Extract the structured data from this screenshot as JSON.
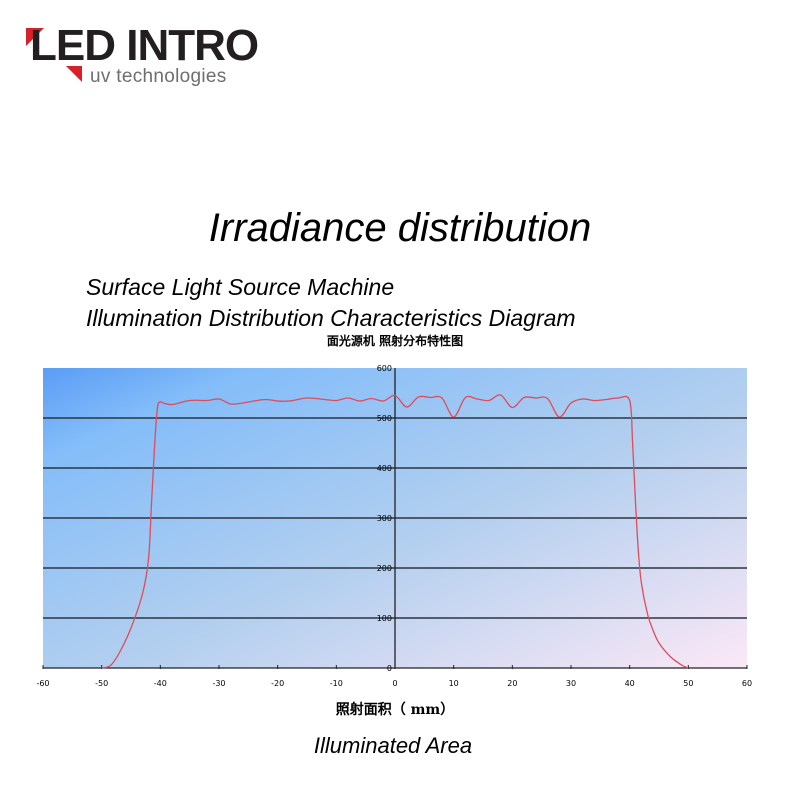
{
  "logo": {
    "brand": "LED INTRO",
    "tagline": "uv technologies",
    "accent_color": "#d7202a",
    "text_color": "#231f20",
    "tagline_color": "#6d6e70"
  },
  "titles": {
    "main": "Irradiance distribution",
    "subtitle_line1": "Surface Light Source Machine",
    "subtitle_line2": "Illumination Distribution Characteristics Diagram",
    "chart_title_cn": "面光源机 照射分布特性图",
    "xlabel_cn": "照射面积（ mm）",
    "xlabel_en": "Illuminated Area"
  },
  "chart_data": {
    "type": "line",
    "title": "面光源机 照射分布特性图",
    "xlabel": "照射面积（ mm）",
    "ylabel": "",
    "xlim": [
      -60,
      60
    ],
    "ylim": [
      0,
      600
    ],
    "x_ticks": [
      -60,
      -50,
      -40,
      -30,
      -20,
      -10,
      0,
      10,
      20,
      30,
      40,
      50,
      60
    ],
    "y_ticks": [
      0,
      100,
      200,
      300,
      400,
      500,
      600
    ],
    "grid": "horizontal",
    "legend": "none",
    "background": "gradient blue (#5b9cf6 top-left) to pink (#fbe8f6 bottom-right)",
    "line_color": "#e04b5a",
    "series": [
      {
        "name": "Irradiance",
        "x": [
          -50,
          -48.5,
          -47,
          -45,
          -43,
          -42,
          -41.5,
          -41,
          -40.5,
          -40,
          -39.5,
          -38,
          -35,
          -32,
          -30,
          -28,
          -26,
          -24,
          -22,
          -20,
          -18,
          -15,
          -12,
          -10,
          -8,
          -6,
          -4,
          -2,
          0,
          2,
          4,
          6,
          8,
          10,
          12,
          14,
          16,
          18,
          20,
          22,
          24,
          26,
          28,
          30,
          32,
          34,
          36,
          38,
          40,
          40.5,
          41,
          41.5,
          42,
          43,
          44,
          45,
          47,
          49,
          50
        ],
        "y": [
          0,
          5,
          30,
          80,
          150,
          220,
          330,
          440,
          520,
          532,
          530,
          527,
          535,
          535,
          538,
          528,
          530,
          534,
          537,
          534,
          534,
          540,
          537,
          535,
          540,
          534,
          539,
          534,
          545,
          522,
          542,
          541,
          540,
          502,
          541,
          538,
          535,
          546,
          521,
          541,
          540,
          539,
          502,
          530,
          538,
          535,
          537,
          540,
          535,
          450,
          330,
          230,
          170,
          110,
          75,
          50,
          22,
          5,
          0
        ]
      }
    ]
  }
}
